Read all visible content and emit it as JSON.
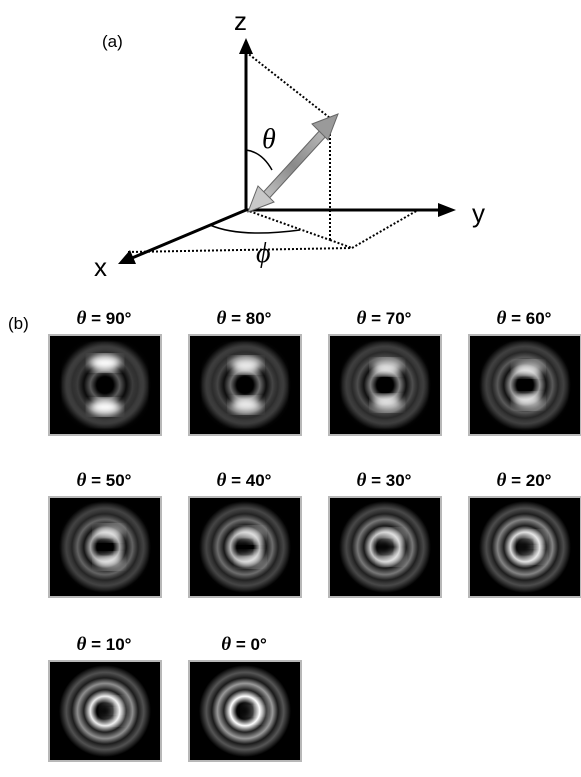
{
  "panel_a": {
    "label": "(a)",
    "axes": {
      "z": "z",
      "y": "y",
      "x": "x"
    },
    "angles": {
      "polar": "θ",
      "azimuthal": "ϕ"
    }
  },
  "panel_b": {
    "label": "(b)",
    "symbol": "θ",
    "tiles": [
      {
        "value": "90°",
        "theta_deg": 90
      },
      {
        "value": "80°",
        "theta_deg": 80
      },
      {
        "value": "70°",
        "theta_deg": 70
      },
      {
        "value": "60°",
        "theta_deg": 60
      },
      {
        "value": "50°",
        "theta_deg": 50
      },
      {
        "value": "40°",
        "theta_deg": 40
      },
      {
        "value": "30°",
        "theta_deg": 30
      },
      {
        "value": "20°",
        "theta_deg": 20
      },
      {
        "value": "10°",
        "theta_deg": 10
      },
      {
        "value": "0°",
        "theta_deg": 0
      }
    ]
  }
}
